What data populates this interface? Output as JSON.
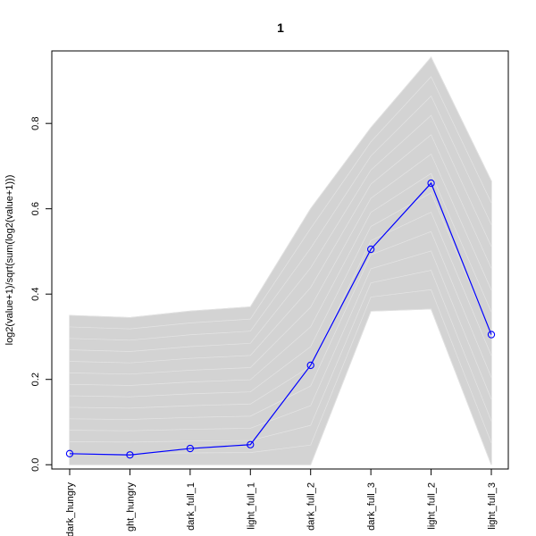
{
  "chart_data": {
    "type": "line",
    "title": "1",
    "xlabel": "",
    "ylabel": "log2(value+1)/sqrt(sum(log2(value+1)))",
    "categories": [
      "dark_hungry",
      "light_hungry",
      "dark_full_1",
      "light_full_1",
      "dark_full_2",
      "dark_full_3",
      "light_full_2",
      "light_full_3"
    ],
    "category_labels_visible": [
      "dark_hungry",
      "ght_hungry",
      "dark_full_1",
      "light_full_1",
      "dark_full_2",
      "dark_full_3",
      "light_full_2",
      "light_full_3"
    ],
    "ylim": [
      -0.01,
      0.97
    ],
    "yticks": [
      0.0,
      0.2,
      0.4,
      0.6,
      0.8
    ],
    "ytick_labels": [
      "0.0",
      "0.2",
      "0.4",
      "0.6",
      "0.8"
    ],
    "grid": false,
    "series": [
      {
        "values": [
          0.026,
          0.023,
          0.038,
          0.047,
          0.233,
          0.505,
          0.66,
          0.305
        ],
        "color": "#0000ff",
        "marker": "open-circle"
      }
    ],
    "background_band": {
      "color": "#d3d3d3",
      "upper": [
        0.35,
        0.345,
        0.36,
        0.37,
        0.6,
        0.79,
        0.955,
        0.665
      ],
      "lower": [
        0.0,
        0.0,
        0.0,
        0.0,
        0.0,
        0.36,
        0.365,
        0.0
      ]
    }
  }
}
